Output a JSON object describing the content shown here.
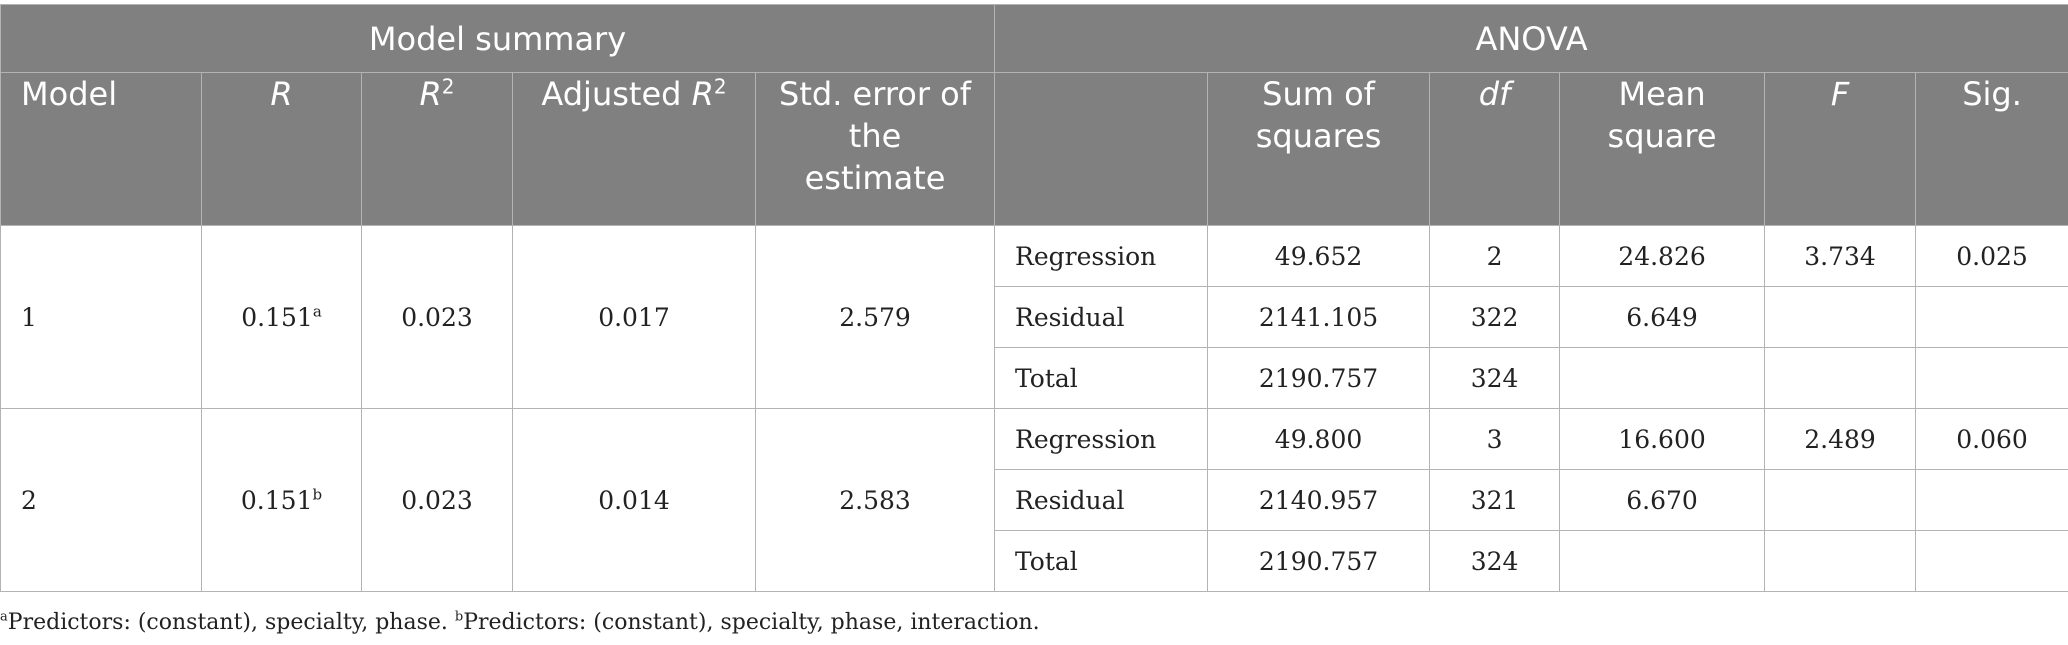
{
  "header": {
    "model_summary": "Model summary",
    "anova": "ANOVA",
    "model": "Model",
    "r": "R",
    "r2_base": "R",
    "r2_sup": "2",
    "adj_prefix": "Adjusted ",
    "adj_base": "R",
    "adj_sup": "2",
    "std_error": "Std. error of the estimate",
    "sum_squares": "Sum of squares",
    "df": "df",
    "mean_square": "Mean square",
    "f": "F",
    "sig": "Sig."
  },
  "models": [
    {
      "model": "1",
      "r": "0.151",
      "r_note": "a",
      "r2": "0.023",
      "adj_r2": "0.017",
      "std_error": "2.579",
      "anova": [
        {
          "source": "Regression",
          "ss": "49.652",
          "df": "2",
          "ms": "24.826",
          "f": "3.734",
          "sig": "0.025"
        },
        {
          "source": "Residual",
          "ss": "2141.105",
          "df": "322",
          "ms": "6.649",
          "f": "",
          "sig": ""
        },
        {
          "source": "Total",
          "ss": "2190.757",
          "df": "324",
          "ms": "",
          "f": "",
          "sig": ""
        }
      ]
    },
    {
      "model": "2",
      "r": "0.151",
      "r_note": "b",
      "r2": "0.023",
      "adj_r2": "0.014",
      "std_error": "2.583",
      "anova": [
        {
          "source": "Regression",
          "ss": "49.800",
          "df": "3",
          "ms": "16.600",
          "f": "2.489",
          "sig": "0.060"
        },
        {
          "source": "Residual",
          "ss": "2140.957",
          "df": "321",
          "ms": "6.670",
          "f": "",
          "sig": ""
        },
        {
          "source": "Total",
          "ss": "2190.757",
          "df": "324",
          "ms": "",
          "f": "",
          "sig": ""
        }
      ]
    }
  ],
  "footnotes": [
    {
      "mark": "a",
      "text": "Predictors: (constant), specialty, phase. "
    },
    {
      "mark": "b",
      "text": "Predictors: (constant), specialty, phase, interaction."
    }
  ]
}
